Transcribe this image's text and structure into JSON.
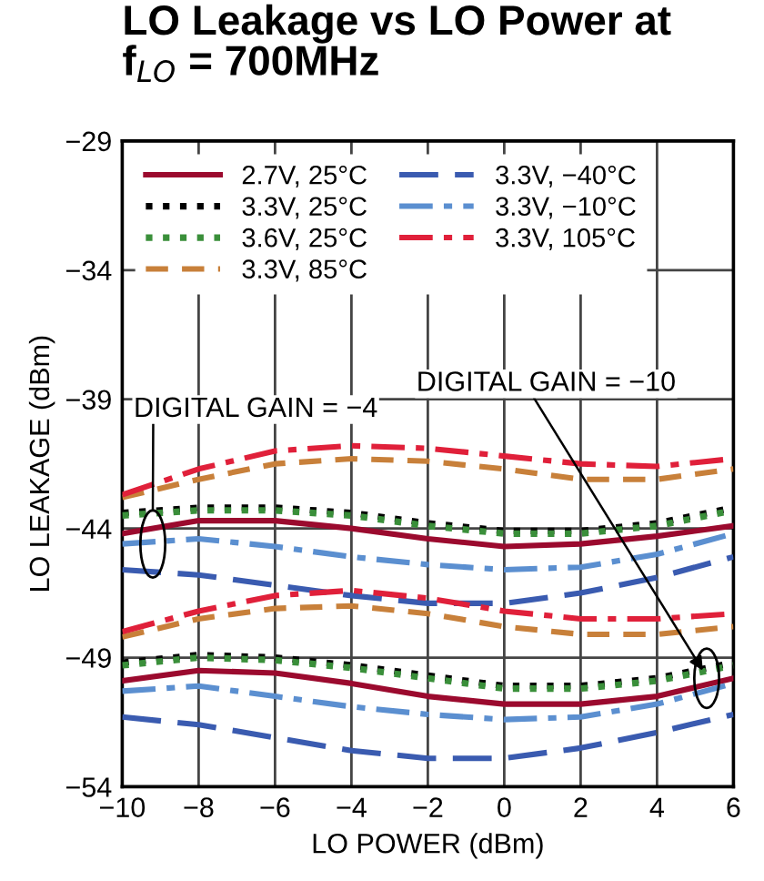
{
  "chart_data": {
    "type": "line",
    "title": "LO Leakage vs LO Power at\nf$_{LO}$ = 700MHz",
    "xlabel": "LO POWER (dBm)",
    "ylabel": "LO LEAKAGE (dBm)",
    "x": [
      -10,
      -8,
      -6,
      -4,
      -2,
      0,
      2,
      4,
      6
    ],
    "xlim": [
      -10,
      6
    ],
    "xticks": [
      -10,
      -8,
      -6,
      -4,
      -2,
      0,
      2,
      4,
      6
    ],
    "ylim": [
      -54,
      -29
    ],
    "yticks": [
      -54,
      -49,
      -44,
      -39,
      -34,
      -29
    ],
    "grid": true,
    "legend": "top",
    "marker": "none",
    "annotations": [
      {
        "text": "DIGITAL GAIN = −4",
        "x": -9.2,
        "y": -43.3
      },
      {
        "text": "DIGITAL GAIN = −10",
        "x": 5.2,
        "y": -49.5
      }
    ],
    "series": [
      {
        "name": "2.7V, 25°C",
        "color": "#9b0a2e",
        "line_style": "solid",
        "values": [
          -44.2,
          -43.7,
          -43.7,
          -44.0,
          -44.4,
          -44.7,
          -44.6,
          -44.3,
          -43.9
        ]
      },
      {
        "name": "3.3V, 25°C",
        "color": "#000000",
        "line_style": "dotted",
        "values": [
          -43.4,
          -43.2,
          -43.2,
          -43.4,
          -43.8,
          -44.1,
          -44.1,
          -43.8,
          -43.2
        ]
      },
      {
        "name": "3.6V, 25°C",
        "color": "#3a8f3a",
        "line_style": "dotted",
        "values": [
          -43.5,
          -43.3,
          -43.3,
          -43.5,
          -43.9,
          -44.2,
          -44.2,
          -43.9,
          -43.3
        ]
      },
      {
        "name": "3.3V, 85°C",
        "color": "#c8803a",
        "line_style": "dashed",
        "values": [
          -42.8,
          -42.1,
          -41.5,
          -41.3,
          -41.4,
          -41.7,
          -42.1,
          -42.1,
          -41.7
        ]
      },
      {
        "name": "3.3V, −40°C",
        "color": "#3a5bb0",
        "line_style": "longdash",
        "values": [
          -45.6,
          -45.8,
          -46.2,
          -46.6,
          -46.9,
          -46.9,
          -46.5,
          -45.9,
          -45.1
        ]
      },
      {
        "name": "3.3V, −10°C",
        "color": "#5b8fd0",
        "line_style": "dashdot",
        "values": [
          -44.6,
          -44.4,
          -44.7,
          -45.1,
          -45.4,
          -45.6,
          -45.5,
          -45.0,
          -44.2
        ]
      },
      {
        "name": "3.3V, 105°C",
        "color": "#e0203a",
        "line_style": "dashdot",
        "values": [
          -42.7,
          -41.7,
          -41.0,
          -40.8,
          -40.9,
          -41.2,
          -41.5,
          -41.6,
          -41.3
        ]
      },
      {
        "color": "#9b0a2e",
        "line_style": "solid",
        "values": [
          -49.9,
          -49.5,
          -49.6,
          -50.0,
          -50.5,
          -50.8,
          -50.8,
          -50.5,
          -49.8
        ]
      },
      {
        "color": "#000000",
        "line_style": "dotted",
        "values": [
          -49.2,
          -48.9,
          -49.0,
          -49.3,
          -49.7,
          -50.1,
          -50.1,
          -49.8,
          -49.2
        ]
      },
      {
        "color": "#3a8f3a",
        "line_style": "dotted",
        "values": [
          -49.3,
          -49.0,
          -49.1,
          -49.4,
          -49.8,
          -50.2,
          -50.2,
          -49.9,
          -49.3
        ]
      },
      {
        "color": "#c8803a",
        "line_style": "dashed",
        "values": [
          -48.2,
          -47.5,
          -47.1,
          -47.0,
          -47.3,
          -47.8,
          -48.1,
          -48.1,
          -47.8
        ]
      },
      {
        "color": "#3a5bb0",
        "line_style": "longdash",
        "values": [
          -51.3,
          -51.6,
          -52.1,
          -52.6,
          -52.9,
          -52.9,
          -52.5,
          -51.9,
          -51.2
        ]
      },
      {
        "color": "#5b8fd0",
        "line_style": "dashdot",
        "values": [
          -50.3,
          -50.1,
          -50.5,
          -50.9,
          -51.2,
          -51.4,
          -51.3,
          -50.8,
          -50.0
        ]
      },
      {
        "color": "#e0203a",
        "line_style": "dashdot",
        "values": [
          -48.0,
          -47.2,
          -46.6,
          -46.4,
          -46.7,
          -47.2,
          -47.5,
          -47.5,
          -47.3
        ]
      }
    ]
  }
}
